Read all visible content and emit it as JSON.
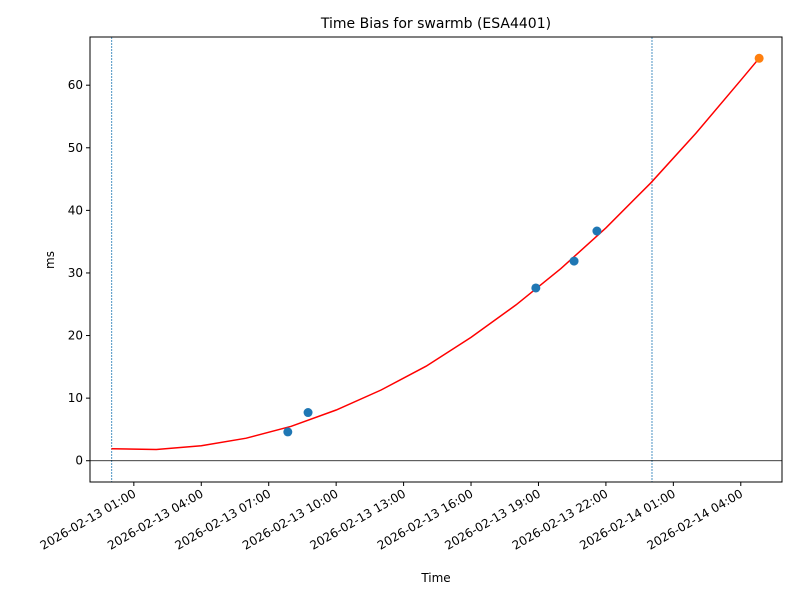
{
  "chart_data": {
    "type": "scatter",
    "title": "Time Bias for swarmb (ESA4401)",
    "xlabel": "Time",
    "ylabel": "ms",
    "xlim": [
      "2026-02-12 23:03",
      "2026-02-14 05:50"
    ],
    "xticks": [
      "2026-02-13 01:00",
      "2026-02-13 04:00",
      "2026-02-13 07:00",
      "2026-02-13 10:00",
      "2026-02-13 13:00",
      "2026-02-13 16:00",
      "2026-02-13 19:00",
      "2026-02-13 22:00",
      "2026-02-14 01:00",
      "2026-02-14 04:00"
    ],
    "ylim": [
      -3.4,
      67.7
    ],
    "yticks": [
      0,
      10,
      20,
      30,
      40,
      50,
      60
    ],
    "series": [
      {
        "marker": "line",
        "color": "#ff0000",
        "x": [
          "2026-02-13 00:00",
          "2026-02-13 02:00",
          "2026-02-13 04:00",
          "2026-02-13 06:00",
          "2026-02-13 08:00",
          "2026-02-13 10:00",
          "2026-02-13 12:00",
          "2026-02-13 14:00",
          "2026-02-13 16:00",
          "2026-02-13 18:00",
          "2026-02-13 20:00",
          "2026-02-13 22:00",
          "2026-02-14 00:00",
          "2026-02-14 02:00",
          "2026-02-14 04:00",
          "2026-02-14 04:49"
        ],
        "values": [
          1.9,
          1.8,
          2.4,
          3.6,
          5.5,
          8.1,
          11.3,
          15.1,
          19.7,
          24.9,
          30.7,
          37.2,
          44.4,
          52.3,
          60.8,
          64.3
        ]
      },
      {
        "marker": "circle",
        "color": "#1f77b4",
        "x": [
          "2026-02-13 07:51",
          "2026-02-13 08:45",
          "2026-02-13 18:53",
          "2026-02-13 20:35",
          "2026-02-13 21:36"
        ],
        "values": [
          4.6,
          7.7,
          27.6,
          31.9,
          36.7
        ]
      },
      {
        "marker": "circle",
        "color": "#ff7f0e",
        "x": [
          "2026-02-14 04:49"
        ],
        "values": [
          64.3
        ]
      }
    ],
    "vlines": [
      "2026-02-13 00:01",
      "2026-02-14 00:03"
    ],
    "vline_color": "#1f77b4",
    "hline": 0
  }
}
